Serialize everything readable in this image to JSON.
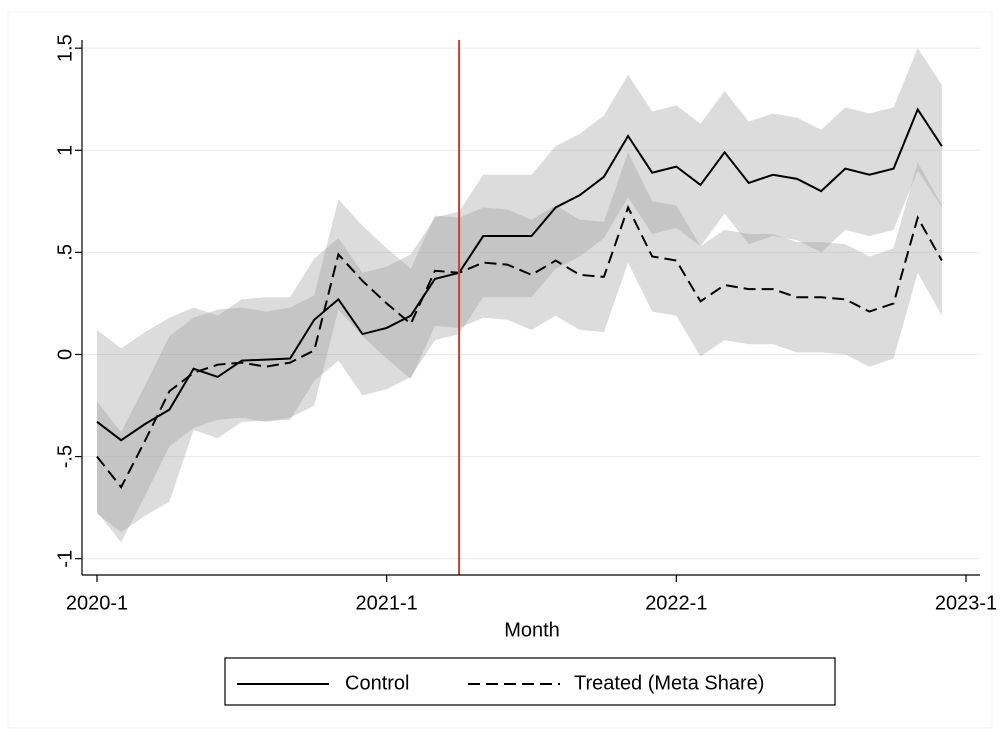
{
  "chart_data": {
    "type": "line",
    "xlabel": "Month",
    "x": [
      "2020-1",
      "2020-2",
      "2020-3",
      "2020-4",
      "2020-5",
      "2020-6",
      "2020-7",
      "2020-8",
      "2020-9",
      "2020-10",
      "2020-11",
      "2020-12",
      "2021-1",
      "2021-2",
      "2021-3",
      "2021-4",
      "2021-5",
      "2021-6",
      "2021-7",
      "2021-8",
      "2021-9",
      "2021-10",
      "2021-11",
      "2021-12",
      "2022-1",
      "2022-2",
      "2022-3",
      "2022-4",
      "2022-5",
      "2022-6",
      "2022-7",
      "2022-8",
      "2022-9",
      "2022-10",
      "2022-11",
      "2022-12"
    ],
    "xlim": [
      "2020-1",
      "2023-1"
    ],
    "xticks": [
      "2020-1",
      "2021-1",
      "2022-1",
      "2023-1"
    ],
    "ylim": [
      -1.08,
      1.54
    ],
    "yticks": [
      -1,
      {
        "value": -0.5,
        "label": "-.5"
      },
      0,
      {
        "value": 0.5,
        "label": ".5"
      },
      1,
      1.5
    ],
    "grid": true,
    "vline": {
      "x": "2021-4",
      "color": "#c8412f"
    },
    "legend": "bottom",
    "series": [
      {
        "name": "Control",
        "color": "#000000",
        "dash": false,
        "values": [
          -0.33,
          -0.42,
          -0.34,
          -0.27,
          -0.07,
          -0.11,
          -0.03,
          -0.025,
          -0.02,
          0.17,
          0.27,
          0.1,
          0.13,
          0.19,
          0.37,
          0.4,
          0.58,
          0.58,
          0.58,
          0.72,
          0.78,
          0.87,
          1.07,
          0.89,
          0.92,
          0.83,
          0.99,
          0.84,
          0.88,
          0.86,
          0.8,
          0.91,
          0.88,
          0.91,
          1.2,
          1.02
        ],
        "upper": [
          0.12,
          0.03,
          0.11,
          0.18,
          0.23,
          0.19,
          0.27,
          0.28,
          0.28,
          0.47,
          0.57,
          0.4,
          0.43,
          0.49,
          0.67,
          0.7,
          0.88,
          0.88,
          0.88,
          1.02,
          1.08,
          1.17,
          1.37,
          1.19,
          1.22,
          1.13,
          1.29,
          1.14,
          1.18,
          1.16,
          1.1,
          1.21,
          1.18,
          1.21,
          1.5,
          1.32
        ],
        "lower": [
          -0.78,
          -0.87,
          -0.79,
          -0.72,
          -0.37,
          -0.41,
          -0.33,
          -0.325,
          -0.32,
          -0.13,
          -0.03,
          -0.2,
          -0.17,
          -0.11,
          0.07,
          0.1,
          0.28,
          0.28,
          0.28,
          0.42,
          0.48,
          0.57,
          0.77,
          0.59,
          0.62,
          0.53,
          0.69,
          0.54,
          0.58,
          0.56,
          0.5,
          0.61,
          0.58,
          0.61,
          0.9,
          0.72
        ]
      },
      {
        "name": "Treated (Meta Share)",
        "color": "#000000",
        "dash": true,
        "values": [
          -0.5,
          -0.65,
          -0.42,
          -0.18,
          -0.09,
          -0.05,
          -0.04,
          -0.06,
          -0.04,
          0.02,
          0.49,
          0.36,
          0.25,
          0.15,
          0.41,
          0.4,
          0.45,
          0.44,
          0.39,
          0.46,
          0.39,
          0.38,
          0.72,
          0.48,
          0.46,
          0.26,
          0.34,
          0.32,
          0.32,
          0.28,
          0.28,
          0.27,
          0.21,
          0.25,
          0.67,
          0.46
        ],
        "upper": [
          -0.23,
          -0.38,
          -0.15,
          0.09,
          0.18,
          0.22,
          0.23,
          0.21,
          0.23,
          0.29,
          0.76,
          0.63,
          0.52,
          0.42,
          0.68,
          0.67,
          0.72,
          0.71,
          0.66,
          0.73,
          0.66,
          0.65,
          0.99,
          0.75,
          0.73,
          0.53,
          0.61,
          0.59,
          0.59,
          0.55,
          0.55,
          0.54,
          0.48,
          0.52,
          0.94,
          0.73
        ],
        "lower": [
          -0.77,
          -0.92,
          -0.69,
          -0.45,
          -0.36,
          -0.32,
          -0.31,
          -0.33,
          -0.31,
          -0.25,
          0.22,
          0.09,
          -0.02,
          -0.12,
          0.14,
          0.13,
          0.18,
          0.17,
          0.12,
          0.19,
          0.12,
          0.11,
          0.45,
          0.21,
          0.19,
          -0.01,
          0.07,
          0.05,
          0.05,
          0.01,
          0.01,
          0.0,
          -0.06,
          -0.02,
          0.4,
          0.19
        ]
      }
    ]
  }
}
